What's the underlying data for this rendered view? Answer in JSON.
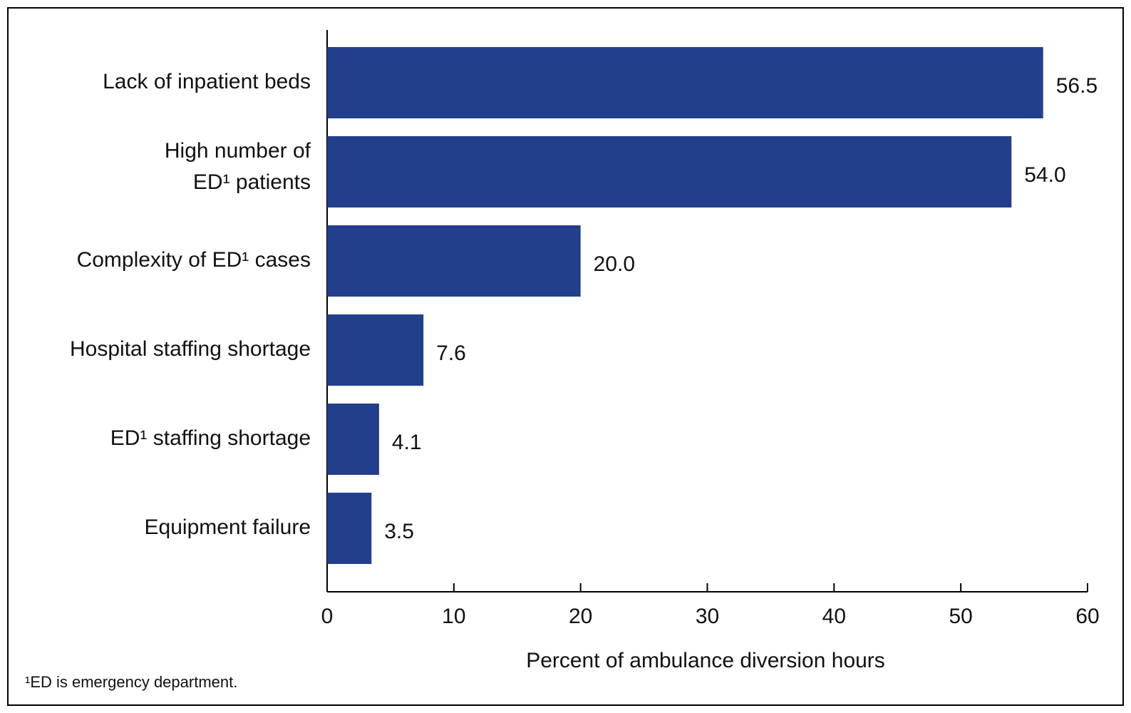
{
  "chart_data": {
    "type": "bar",
    "orientation": "horizontal",
    "xlabel": "Percent of ambulance diversion hours",
    "footnote": "¹ED is emergency department.",
    "categories": [
      "Lack of inpatient beds",
      [
        "High number of",
        "ED¹ patients"
      ],
      "Complexity of ED¹ cases",
      "Hospital staffing shortage",
      "ED¹ staffing shortage",
      "Equipment failure"
    ],
    "values": [
      56.5,
      54.0,
      20.0,
      7.6,
      4.1,
      3.5
    ],
    "value_labels": [
      "56.5",
      "54.0",
      "20.0",
      "7.6",
      "4.1",
      "3.5"
    ],
    "color": "#233e8b",
    "xlim": [
      0,
      60
    ],
    "xticks": [
      0,
      10,
      20,
      30,
      40,
      50,
      60
    ],
    "grid": false
  }
}
